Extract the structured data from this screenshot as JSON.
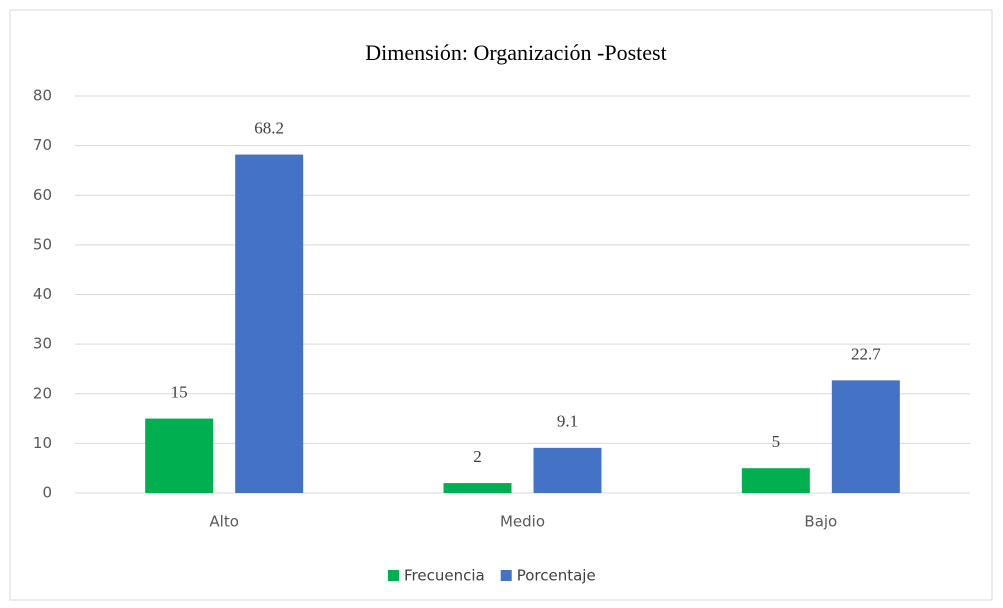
{
  "chart_data": {
    "type": "bar",
    "title": "Dimensión: Organización -Postest",
    "categories": [
      "Alto",
      "Medio",
      "Bajo"
    ],
    "series": [
      {
        "name": "Frecuencia",
        "color": "#00b050",
        "values": [
          15,
          2,
          5
        ]
      },
      {
        "name": "Porcentaje",
        "color": "#4472c4",
        "values": [
          68.2,
          9.1,
          22.7
        ]
      }
    ],
    "ylim": [
      0,
      80
    ],
    "yticks": [
      0,
      10,
      20,
      30,
      40,
      50,
      60,
      70,
      80
    ],
    "grid": true,
    "legend": "bottom"
  }
}
